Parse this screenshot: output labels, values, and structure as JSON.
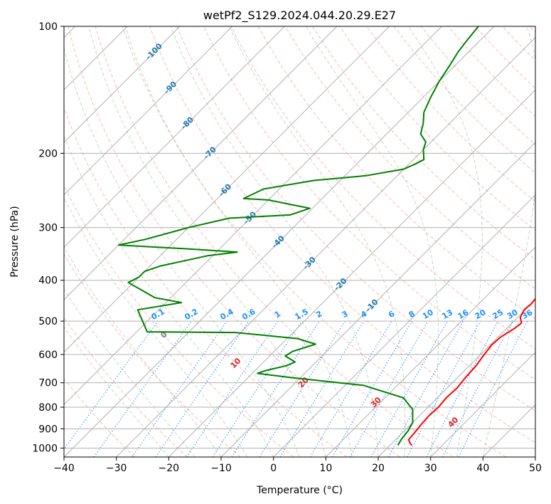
{
  "chart_data": {
    "type": "line",
    "chart_kind": "skew-T log-P diagram",
    "title": "wetPf2_S129.2024.044.20.29.E27",
    "xlabel": "Temperature (°C)",
    "ylabel": "Pressure (hPa)",
    "xlim": [
      -40,
      50
    ],
    "ylim": [
      1050,
      100
    ],
    "y_scale": "log",
    "grid": true,
    "x_ticks": [
      -40,
      -30,
      -20,
      -10,
      0,
      10,
      20,
      30,
      40,
      50
    ],
    "x_tick_labels": [
      "−40",
      "−30",
      "−20",
      "−10",
      "0",
      "10",
      "20",
      "30",
      "40",
      "50"
    ],
    "y_ticks": [
      100,
      200,
      300,
      400,
      500,
      600,
      700,
      800,
      900,
      1000
    ],
    "y_tick_labels": [
      "100",
      "200",
      "300",
      "400",
      "500",
      "600",
      "700",
      "800",
      "900",
      "1000"
    ],
    "colors": {
      "temperature": "#ff0000",
      "dewpoint": "#008000",
      "isotherm_labels": "#1f77b4",
      "mixing_ratio_labels": "#1e90ff",
      "dry_adiabat_labels": "#d62728",
      "dry_adiabat": "#fa8072",
      "moist_adiabat": "#8fbc8f",
      "grid": "#b0b0b0"
    },
    "isotherm_labels": [
      "-100",
      "-90",
      "-80",
      "-70",
      "-60",
      "-50",
      "-40",
      "-30",
      "-20",
      "-10"
    ],
    "mixing_ratio_labels": [
      "0.1",
      "0.2",
      "0.4",
      "0.6",
      "1",
      "1.5",
      "2",
      "3",
      "4",
      "6",
      "8",
      "10",
      "13",
      "16",
      "20",
      "25",
      "30",
      "36"
    ],
    "dry_adiabat_labels": [
      "0",
      "10",
      "20",
      "30",
      "40"
    ],
    "series": [
      {
        "name": "temperature",
        "points": [
          [
            24.2,
            985
          ],
          [
            23.5,
            975
          ],
          [
            22.5,
            955
          ],
          [
            22.3,
            920
          ],
          [
            22.0,
            880
          ],
          [
            21.8,
            840
          ],
          [
            22.0,
            800
          ],
          [
            21.7,
            760
          ],
          [
            21.9,
            720
          ],
          [
            21.5,
            680
          ],
          [
            21.3,
            640
          ],
          [
            20.7,
            600
          ],
          [
            20.3,
            570
          ],
          [
            20.5,
            545
          ],
          [
            21.5,
            520
          ],
          [
            21.8,
            505
          ],
          [
            20.5,
            490
          ],
          [
            19.8,
            470
          ],
          [
            20.0,
            455
          ],
          [
            19.8,
            440
          ],
          [
            20.3,
            430
          ],
          [
            21.5,
            420
          ],
          [
            22.5,
            410
          ],
          [
            23.0,
            400
          ],
          [
            22.8,
            390
          ],
          [
            21.0,
            370
          ],
          [
            17.0,
            340
          ],
          [
            15.8,
            315
          ],
          [
            14.0,
            295
          ],
          [
            12.0,
            275
          ],
          [
            10.8,
            250
          ],
          [
            9.6,
            230
          ],
          [
            7.0,
            210
          ],
          [
            4.5,
            190
          ],
          [
            2.0,
            170
          ],
          [
            -0.5,
            155
          ],
          [
            -3.0,
            140
          ],
          [
            -5.8,
            125
          ],
          [
            -8.0,
            115
          ],
          [
            -9.5,
            110
          ],
          [
            -12.0,
            105
          ],
          [
            -13.5,
            100
          ]
        ]
      },
      {
        "name": "dewpoint",
        "points": [
          [
            21.5,
            985
          ],
          [
            21.0,
            950
          ],
          [
            20.7,
            910
          ],
          [
            20.0,
            870
          ],
          [
            17.5,
            810
          ],
          [
            13.5,
            760
          ],
          [
            3.5,
            710
          ],
          [
            -12.0,
            680
          ],
          [
            -19.0,
            665
          ],
          [
            -18.0,
            655
          ],
          [
            -15.0,
            638
          ],
          [
            -14.0,
            625
          ],
          [
            -17.0,
            605
          ],
          [
            -16.5,
            590
          ],
          [
            -13.5,
            567
          ],
          [
            -18.0,
            550
          ],
          [
            -31.0,
            532
          ],
          [
            -48.0,
            530
          ],
          [
            -54.0,
            470
          ],
          [
            -47.0,
            452
          ],
          [
            -53.0,
            440
          ],
          [
            -61.0,
            405
          ],
          [
            -60.0,
            393
          ],
          [
            -60.0,
            381
          ],
          [
            -58.0,
            370
          ],
          [
            -51.0,
            350
          ],
          [
            -46.0,
            343
          ],
          [
            -56.0,
            337
          ],
          [
            -70.0,
            330
          ],
          [
            -66.0,
            320
          ],
          [
            -60.0,
            300
          ],
          [
            -54.0,
            285
          ],
          [
            -43.0,
            280
          ],
          [
            -40.5,
            270
          ],
          [
            -50.0,
            258
          ],
          [
            -55.0,
            256
          ],
          [
            -53.0,
            243
          ],
          [
            -45.0,
            232
          ],
          [
            -36.0,
            226
          ],
          [
            -30.0,
            218
          ],
          [
            -28.8,
            212
          ],
          [
            -28.0,
            207
          ],
          [
            -30.0,
            196
          ],
          [
            -31.0,
            188
          ],
          [
            -33.5,
            180
          ],
          [
            -35.0,
            170
          ],
          [
            -37.0,
            160
          ],
          [
            -38.5,
            148
          ],
          [
            -40.0,
            135
          ],
          [
            -41.0,
            124
          ],
          [
            -42.0,
            115
          ],
          [
            -42.5,
            108
          ],
          [
            -43.0,
            100
          ]
        ]
      }
    ]
  }
}
